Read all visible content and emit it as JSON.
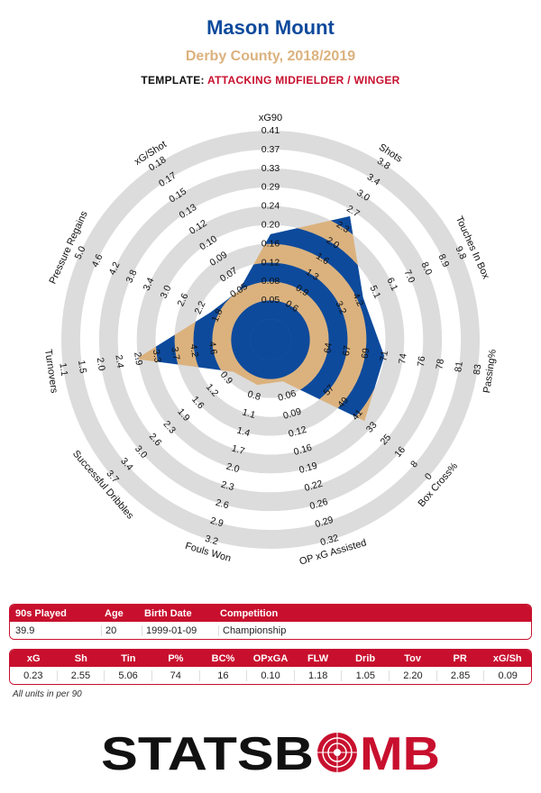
{
  "header": {
    "player": "Mason Mount",
    "team_season": "Derby County, 2018/2019",
    "template_label": "TEMPLATE:",
    "template_value": "ATTACKING MIDFIELDER / WINGER"
  },
  "colors": {
    "blue": "#0d4a9c",
    "tan": "#dbb27e",
    "red": "#c8102e",
    "ring": "#dcdcdc"
  },
  "chart_data": {
    "type": "radar",
    "title": "",
    "axes": [
      {
        "label": "xG90",
        "ticks": [
          "0.05",
          "0.08",
          "0.12",
          "0.16",
          "0.20",
          "0.24",
          "0.29",
          "0.33",
          "0.37",
          "0.41"
        ],
        "value": 0.23,
        "fraction": 0.45
      },
      {
        "label": "Shots",
        "ticks": [
          "0.6",
          "0.9",
          "1.3",
          "1.6",
          "2.0",
          "2.3",
          "2.7",
          "3.0",
          "3.4",
          "3.8"
        ],
        "value": 2.55,
        "fraction": 0.67
      },
      {
        "label": "Touches In Box",
        "ticks": [
          "3.2",
          "4.2",
          "5.1",
          "6.1",
          "7.0",
          "8.0",
          "8.9",
          "9.8"
        ],
        "value": 5.06,
        "fraction": 0.43
      },
      {
        "label": "Passing%",
        "ticks": [
          "64",
          "67",
          "69",
          "71",
          "74",
          "76",
          "78",
          "81",
          "83"
        ],
        "value": 74,
        "fraction": 0.5
      },
      {
        "label": "Box Cross%",
        "ticks": [
          "57",
          "49",
          "41",
          "33",
          "25",
          "16",
          "8",
          "0"
        ],
        "value": 16,
        "fraction": 0.55
      },
      {
        "label": "OP xG Assisted",
        "ticks": [
          "0.06",
          "0.09",
          "0.12",
          "0.16",
          "0.19",
          "0.22",
          "0.26",
          "0.29",
          "0.32"
        ],
        "value": 0.1,
        "fraction": 0.12
      },
      {
        "label": "Fouls Won",
        "ticks": [
          "0.8",
          "1.1",
          "1.4",
          "1.7",
          "2.0",
          "2.3",
          "2.6",
          "2.9",
          "3.2"
        ],
        "value": 1.18,
        "fraction": 0.14
      },
      {
        "label": "Successful Dribbles",
        "ticks": [
          "0.9",
          "1.2",
          "1.6",
          "1.9",
          "2.3",
          "2.6",
          "3.0",
          "3.4",
          "3.7"
        ],
        "value": 1.05,
        "fraction": 0.15
      },
      {
        "label": "Turnovers",
        "ticks": [
          "4.6",
          "4.2",
          "3.7",
          "3.3",
          "2.9",
          "2.4",
          "2.0",
          "1.5",
          "1.1"
        ],
        "value": 2.2,
        "fraction": 0.61
      },
      {
        "label": "Pressure Regains",
        "ticks": [
          "1.8",
          "2.2",
          "2.6",
          "3.0",
          "3.4",
          "3.8",
          "4.2",
          "4.6",
          "5.0"
        ],
        "value": 2.85,
        "fraction": 0.24
      },
      {
        "label": "xG/Shot",
        "ticks": [
          "0.05",
          "0.07",
          "0.09",
          "0.10",
          "0.12",
          "0.13",
          "0.15",
          "0.17",
          "0.18"
        ],
        "value": 0.09,
        "fraction": 0.2
      }
    ]
  },
  "info_table": {
    "headers": [
      "90s Played",
      "Age",
      "Birth Date",
      "Competition"
    ],
    "values": [
      "39.9",
      "20",
      "1999-01-09",
      "Championship"
    ]
  },
  "stats_table": {
    "headers": [
      "xG",
      "Sh",
      "Tin",
      "P%",
      "BC%",
      "OPxGA",
      "FLW",
      "Drib",
      "Tov",
      "PR",
      "xG/Sh"
    ],
    "values": [
      "0.23",
      "2.55",
      "5.06",
      "74",
      "16",
      "0.10",
      "1.18",
      "1.05",
      "2.20",
      "2.85",
      "0.09"
    ]
  },
  "footnote": "All units in per 90",
  "logo": {
    "text_left": "STATSB",
    "text_right": "MB"
  }
}
